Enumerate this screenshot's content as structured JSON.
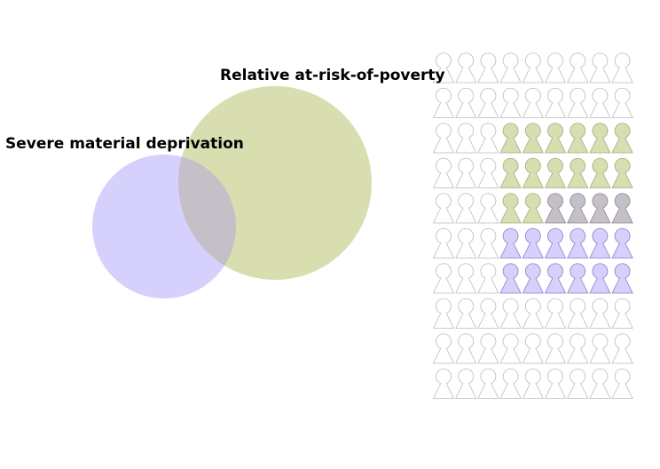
{
  "venn": {
    "sets": [
      {
        "label": "Relative at-risk-of-poverty",
        "color": "#d9deb0"
      },
      {
        "label": "Severe material deprivation",
        "color": "#d5d0fc"
      }
    ],
    "overlap_color": "#c5bfc7"
  },
  "pictogram": {
    "rows": 10,
    "columns": 9,
    "outline_color": "#bbbbbb",
    "empty_color": "#ffffff",
    "categories": {
      "relative_only": {
        "color": "#d9deb0",
        "stroke": "#a5aa80"
      },
      "both": {
        "color": "#c5bfc7",
        "stroke": "#8c8690"
      },
      "severe_only": {
        "color": "#d5d0fc",
        "stroke": "#8880c8"
      }
    },
    "grid": [
      [
        "e",
        "e",
        "e",
        "e",
        "e",
        "e",
        "e",
        "e",
        "e"
      ],
      [
        "e",
        "e",
        "e",
        "e",
        "e",
        "e",
        "e",
        "e",
        "e"
      ],
      [
        "e",
        "e",
        "e",
        "r",
        "r",
        "r",
        "r",
        "r",
        "r"
      ],
      [
        "e",
        "e",
        "e",
        "r",
        "r",
        "r",
        "r",
        "r",
        "r"
      ],
      [
        "e",
        "e",
        "e",
        "r",
        "r",
        "b",
        "b",
        "b",
        "b"
      ],
      [
        "e",
        "e",
        "e",
        "s",
        "s",
        "s",
        "s",
        "s",
        "s"
      ],
      [
        "e",
        "e",
        "e",
        "s",
        "s",
        "s",
        "s",
        "s",
        "s"
      ],
      [
        "e",
        "e",
        "e",
        "e",
        "e",
        "e",
        "e",
        "e",
        "e"
      ],
      [
        "e",
        "e",
        "e",
        "e",
        "e",
        "e",
        "e",
        "e",
        "e"
      ],
      [
        "e",
        "e",
        "e",
        "e",
        "e",
        "e",
        "e",
        "e",
        "e"
      ]
    ]
  }
}
